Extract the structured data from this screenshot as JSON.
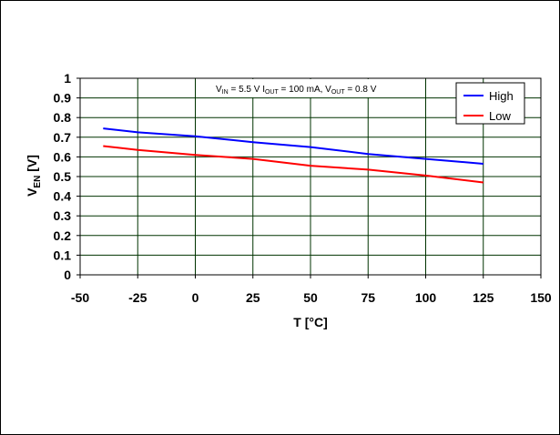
{
  "chart_data": {
    "type": "line",
    "title": "",
    "xlabel": "T [°C]",
    "ylabel": {
      "main": "V",
      "sub": "EN",
      "unit": " [V]"
    },
    "xlim": [
      -50,
      150
    ],
    "ylim": [
      0,
      1
    ],
    "xticks": [
      "-50",
      "-25",
      "0",
      "25",
      "50",
      "75",
      "100",
      "125",
      "150"
    ],
    "yticks": [
      "0",
      "0.1",
      "0.2",
      "0.3",
      "0.4",
      "0.5",
      "0.6",
      "0.7",
      "0.8",
      "0.9",
      "1"
    ],
    "grid": true,
    "legend_position": "top-right",
    "annotation": {
      "parts": [
        {
          "text": "V",
          "sub": false
        },
        {
          "text": "IN",
          "sub": true
        },
        {
          "text": " = 5.5 V I",
          "sub": false
        },
        {
          "text": "OUT",
          "sub": true
        },
        {
          "text": " = 100 mA, V",
          "sub": false
        },
        {
          "text": "OUT",
          "sub": true
        },
        {
          "text": " = 0.8 V",
          "sub": false
        }
      ]
    },
    "series": [
      {
        "name": "High",
        "color": "#0000ff",
        "x": [
          -40,
          -25,
          0,
          25,
          50,
          75,
          100,
          125
        ],
        "y": [
          0.745,
          0.725,
          0.705,
          0.675,
          0.65,
          0.615,
          0.59,
          0.565
        ]
      },
      {
        "name": "Low",
        "color": "#ff0000",
        "x": [
          -40,
          -25,
          0,
          25,
          50,
          75,
          100,
          125
        ],
        "y": [
          0.655,
          0.635,
          0.61,
          0.59,
          0.555,
          0.535,
          0.505,
          0.47
        ]
      }
    ],
    "colors": {
      "grid": "#003300",
      "plot_background": "#ffffff",
      "border": "#000000"
    }
  }
}
